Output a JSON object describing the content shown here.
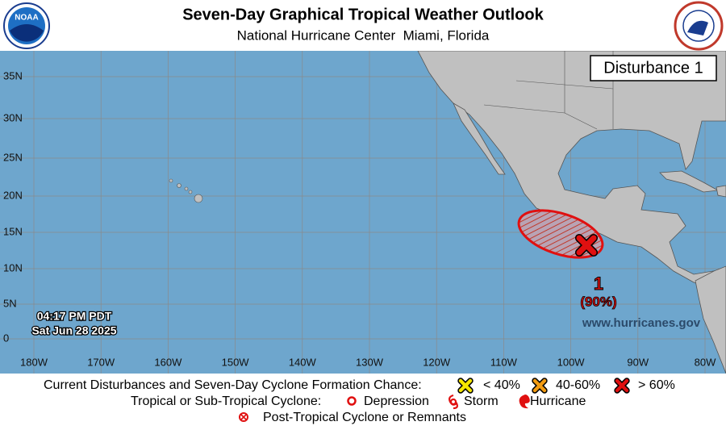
{
  "header": {
    "title": "Seven-Day Graphical Tropical Weather Outlook",
    "subtitle": "National Hurricane Center  Miami, Florida",
    "logo": "NOAA"
  },
  "map": {
    "label": "Disturbance 1",
    "lat_labels": [
      "35N",
      "30N",
      "25N",
      "20N",
      "15N",
      "10N",
      "5N",
      "0"
    ],
    "lon_labels": [
      "180W",
      "170W",
      "160W",
      "150W",
      "140W",
      "130W",
      "120W",
      "110W",
      "100W",
      "90W",
      "80W"
    ],
    "time": "04:17 PM PDT",
    "date": "Sat Jun 28 2025",
    "website": "www.hurricanes.gov",
    "disturbances": [
      {
        "number": "1",
        "chance": "(90%)"
      }
    ]
  },
  "legend": {
    "formation_title": "Current Disturbances and Seven-Day Cyclone Formation Chance:",
    "formation_items": [
      "< 40%",
      "40-60%",
      "> 60%"
    ],
    "cyclone_title": "Tropical or Sub-Tropical Cyclone:",
    "cyclone_items": [
      "Depression",
      "Storm",
      "Hurricane"
    ],
    "post_tropical": "Post-Tropical Cyclone or Remnants"
  }
}
